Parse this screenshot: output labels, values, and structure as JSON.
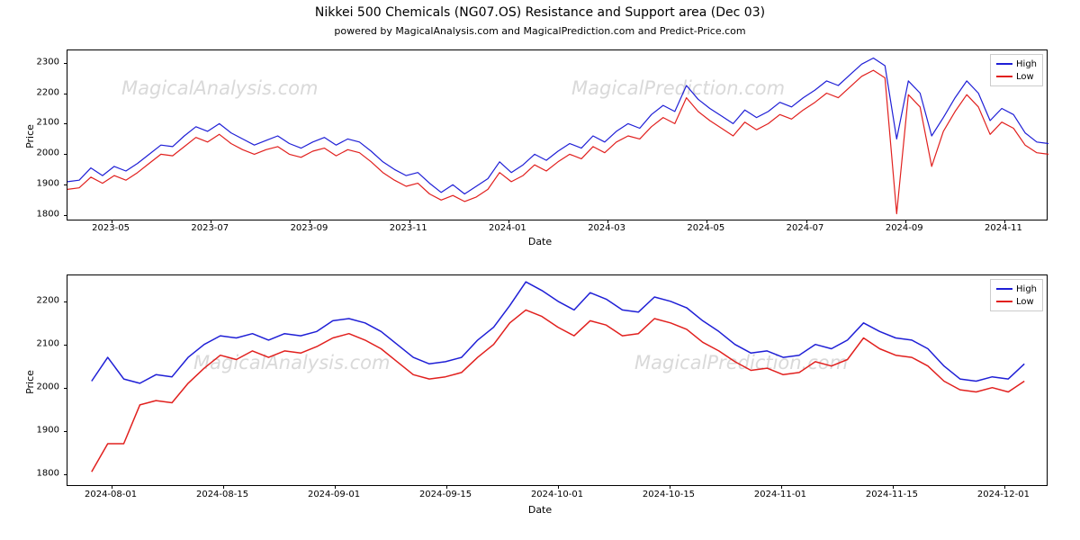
{
  "title": "Nikkei 500 Chemicals (NG07.OS) Resistance and Support area (Dec 03)",
  "subtitle": "powered by MagicalAnalysis.com and MagicalPrediction.com and Predict-Price.com",
  "title_fontsize": 14,
  "subtitle_fontsize": 11,
  "watermark_top_left": "MagicalAnalysis.com",
  "watermark_top_right": "MagicalPrediction.com",
  "watermark_bottom_left": "MagicalAnalysis.com",
  "watermark_bottom_right": "MagicalPrediction.com",
  "watermark_color": "#d9d9d9",
  "legend": {
    "items": [
      {
        "label": "High",
        "color": "#1f1fd6"
      },
      {
        "label": "Low",
        "color": "#e1201e"
      }
    ]
  },
  "chart_top": {
    "type": "line",
    "x_label": "Date",
    "y_label": "Price",
    "label_fontsize": 11,
    "tick_fontsize": 10,
    "background_color": "#ffffff",
    "border_color": "#000000",
    "line_width": 1.2,
    "x_ticks": [
      "2023-05",
      "2023-07",
      "2023-09",
      "2023-11",
      "2024-01",
      "2024-03",
      "2024-05",
      "2024-07",
      "2024-09",
      "2024-11"
    ],
    "y_ticks": [
      1800,
      1900,
      2000,
      2100,
      2200,
      2300
    ],
    "ylim": [
      1780,
      2340
    ],
    "x_domain": [
      0,
      420
    ],
    "series_high": {
      "color": "#1f1fd6",
      "x": [
        0,
        5,
        10,
        15,
        20,
        25,
        30,
        35,
        40,
        45,
        50,
        55,
        60,
        65,
        70,
        75,
        80,
        85,
        90,
        95,
        100,
        105,
        110,
        115,
        120,
        125,
        130,
        135,
        140,
        145,
        150,
        155,
        160,
        165,
        170,
        175,
        180,
        185,
        190,
        195,
        200,
        205,
        210,
        215,
        220,
        225,
        230,
        235,
        240,
        245,
        250,
        255,
        260,
        265,
        270,
        275,
        280,
        285,
        290,
        295,
        300,
        305,
        310,
        315,
        320,
        325,
        330,
        335,
        340,
        345,
        350,
        355,
        360,
        365,
        370,
        375,
        380,
        385,
        390,
        395,
        400,
        405,
        410,
        415,
        420
      ],
      "y": [
        1910,
        1915,
        1955,
        1930,
        1960,
        1945,
        1970,
        2000,
        2030,
        2025,
        2060,
        2090,
        2075,
        2100,
        2070,
        2050,
        2030,
        2045,
        2060,
        2035,
        2020,
        2040,
        2055,
        2030,
        2050,
        2040,
        2010,
        1975,
        1950,
        1930,
        1940,
        1905,
        1875,
        1900,
        1870,
        1895,
        1920,
        1975,
        1940,
        1965,
        2000,
        1980,
        2010,
        2035,
        2020,
        2060,
        2040,
        2075,
        2100,
        2085,
        2130,
        2160,
        2140,
        2225,
        2180,
        2150,
        2125,
        2100,
        2145,
        2120,
        2140,
        2170,
        2155,
        2185,
        2210,
        2240,
        2225,
        2260,
        2295,
        2315,
        2290,
        2050,
        2240,
        2200,
        2060,
        2120,
        2185,
        2240,
        2200,
        2110,
        2150,
        2130,
        2070,
        2040,
        2035
      ]
    },
    "series_low": {
      "color": "#e1201e",
      "x": [
        0,
        5,
        10,
        15,
        20,
        25,
        30,
        35,
        40,
        45,
        50,
        55,
        60,
        65,
        70,
        75,
        80,
        85,
        90,
        95,
        100,
        105,
        110,
        115,
        120,
        125,
        130,
        135,
        140,
        145,
        150,
        155,
        160,
        165,
        170,
        175,
        180,
        185,
        190,
        195,
        200,
        205,
        210,
        215,
        220,
        225,
        230,
        235,
        240,
        245,
        250,
        255,
        260,
        265,
        270,
        275,
        280,
        285,
        290,
        295,
        300,
        305,
        310,
        315,
        320,
        325,
        330,
        335,
        340,
        345,
        350,
        355,
        360,
        365,
        370,
        375,
        380,
        385,
        390,
        395,
        400,
        405,
        410,
        415,
        420
      ],
      "y": [
        1885,
        1890,
        1925,
        1905,
        1930,
        1915,
        1940,
        1970,
        2000,
        1995,
        2025,
        2055,
        2040,
        2065,
        2035,
        2015,
        2000,
        2015,
        2025,
        2000,
        1990,
        2010,
        2020,
        1995,
        2015,
        2005,
        1975,
        1940,
        1915,
        1895,
        1905,
        1870,
        1850,
        1865,
        1845,
        1860,
        1885,
        1940,
        1910,
        1930,
        1965,
        1945,
        1975,
        2000,
        1985,
        2025,
        2005,
        2040,
        2060,
        2050,
        2090,
        2120,
        2100,
        2185,
        2140,
        2110,
        2085,
        2060,
        2105,
        2080,
        2100,
        2130,
        2115,
        2145,
        2170,
        2200,
        2185,
        2220,
        2255,
        2275,
        2250,
        1805,
        2195,
        2155,
        1960,
        2075,
        2140,
        2195,
        2155,
        2065,
        2105,
        2085,
        2030,
        2005,
        2000
      ]
    }
  },
  "chart_bottom": {
    "type": "line",
    "x_label": "Date",
    "y_label": "Price",
    "label_fontsize": 11,
    "tick_fontsize": 10,
    "background_color": "#ffffff",
    "border_color": "#000000",
    "line_width": 1.5,
    "x_ticks": [
      "2024-08-01",
      "2024-08-15",
      "2024-09-01",
      "2024-09-15",
      "2024-10-01",
      "2024-10-15",
      "2024-11-01",
      "2024-11-15",
      "2024-12-01"
    ],
    "y_ticks": [
      1800,
      1900,
      2000,
      2100,
      2200
    ],
    "ylim": [
      1770,
      2260
    ],
    "x_domain": [
      0,
      122
    ],
    "series_high": {
      "color": "#1f1fd6",
      "x": [
        3,
        5,
        7,
        9,
        11,
        13,
        15,
        17,
        19,
        21,
        23,
        25,
        27,
        29,
        31,
        33,
        35,
        37,
        39,
        41,
        43,
        45,
        47,
        49,
        51,
        53,
        55,
        57,
        59,
        61,
        63,
        65,
        67,
        69,
        71,
        73,
        75,
        77,
        79,
        81,
        83,
        85,
        87,
        89,
        91,
        93,
        95,
        97,
        99,
        101,
        103,
        105,
        107,
        109,
        111,
        113,
        115,
        117,
        119
      ],
      "y": [
        2015,
        2070,
        2020,
        2010,
        2030,
        2025,
        2070,
        2100,
        2120,
        2115,
        2125,
        2110,
        2125,
        2120,
        2130,
        2155,
        2160,
        2150,
        2130,
        2100,
        2070,
        2055,
        2060,
        2070,
        2110,
        2140,
        2190,
        2245,
        2225,
        2200,
        2180,
        2220,
        2205,
        2180,
        2175,
        2210,
        2200,
        2185,
        2155,
        2130,
        2100,
        2080,
        2085,
        2070,
        2075,
        2100,
        2090,
        2110,
        2150,
        2130,
        2115,
        2110,
        2090,
        2050,
        2020,
        2015,
        2025,
        2020,
        2055
      ]
    },
    "series_low": {
      "color": "#e1201e",
      "x": [
        3,
        5,
        7,
        9,
        11,
        13,
        15,
        17,
        19,
        21,
        23,
        25,
        27,
        29,
        31,
        33,
        35,
        37,
        39,
        41,
        43,
        45,
        47,
        49,
        51,
        53,
        55,
        57,
        59,
        61,
        63,
        65,
        67,
        69,
        71,
        73,
        75,
        77,
        79,
        81,
        83,
        85,
        87,
        89,
        91,
        93,
        95,
        97,
        99,
        101,
        103,
        105,
        107,
        109,
        111,
        113,
        115,
        117,
        119
      ],
      "y": [
        1805,
        1870,
        1870,
        1960,
        1970,
        1965,
        2010,
        2045,
        2075,
        2065,
        2085,
        2070,
        2085,
        2080,
        2095,
        2115,
        2125,
        2110,
        2090,
        2060,
        2030,
        2020,
        2025,
        2035,
        2070,
        2100,
        2150,
        2180,
        2165,
        2140,
        2120,
        2155,
        2145,
        2120,
        2125,
        2160,
        2150,
        2135,
        2105,
        2085,
        2060,
        2040,
        2045,
        2030,
        2035,
        2060,
        2050,
        2065,
        2115,
        2090,
        2075,
        2070,
        2050,
        2015,
        1995,
        1990,
        2000,
        1990,
        2015
      ]
    }
  }
}
